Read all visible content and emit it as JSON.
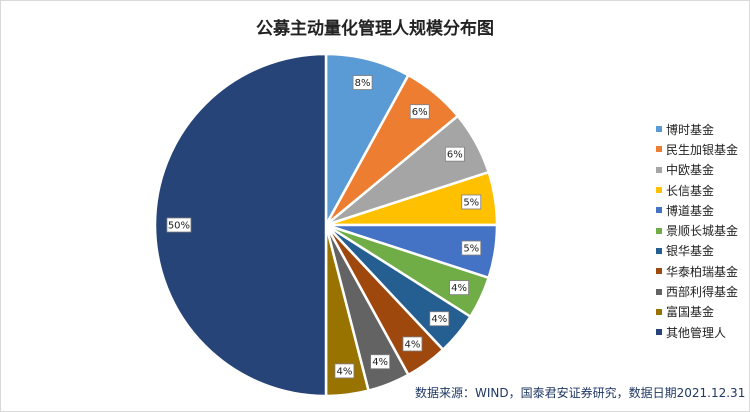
{
  "chart_data": {
    "type": "pie",
    "title": "公募主动量化管理人规模分布图",
    "slices": [
      {
        "name": "博时基金",
        "value": 8,
        "label": "8%",
        "color": "#5b9bd5"
      },
      {
        "name": "民生加银基金",
        "value": 6,
        "label": "6%",
        "color": "#ed7d31"
      },
      {
        "name": "中欧基金",
        "value": 6,
        "label": "6%",
        "color": "#a5a5a5"
      },
      {
        "name": "长信基金",
        "value": 5,
        "label": "5%",
        "color": "#ffc000"
      },
      {
        "name": "博道基金",
        "value": 5,
        "label": "5%",
        "color": "#4472c4"
      },
      {
        "name": "景顺长城基金",
        "value": 4,
        "label": "4%",
        "color": "#70ad47"
      },
      {
        "name": "银华基金",
        "value": 4,
        "label": "4%",
        "color": "#255e91"
      },
      {
        "name": "华泰柏瑞基金",
        "value": 4,
        "label": "4%",
        "color": "#9e480e"
      },
      {
        "name": "西部利得基金",
        "value": 4,
        "label": "4%",
        "color": "#636363"
      },
      {
        "name": "富国基金",
        "value": 4,
        "label": "4%",
        "color": "#997300"
      },
      {
        "name": "其他管理人",
        "value": 50,
        "label": "50%",
        "color": "#264478"
      }
    ],
    "legend_position": "right",
    "source": "数据来源：WIND，国泰君安证券研究，数据日期2021.12.31"
  }
}
